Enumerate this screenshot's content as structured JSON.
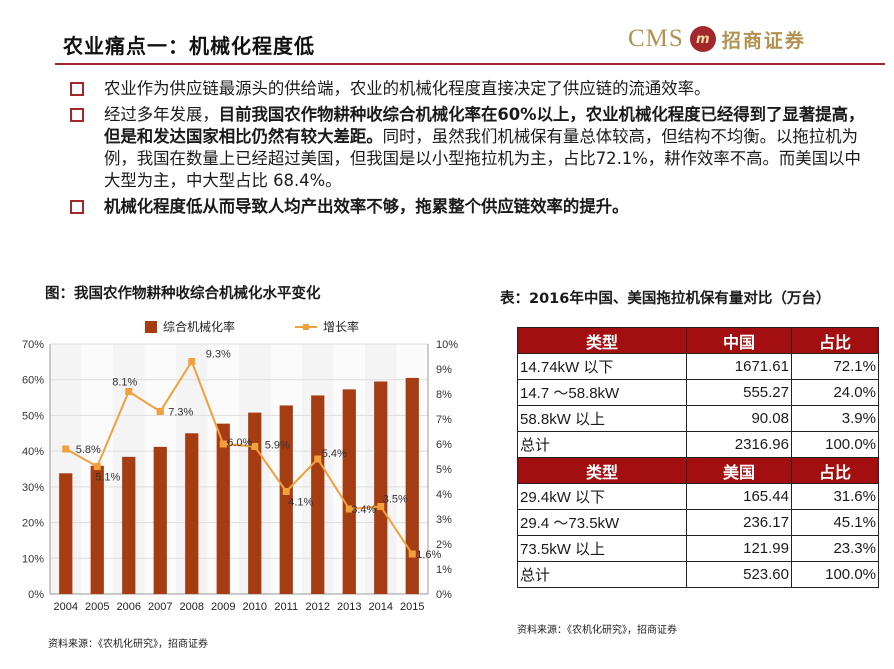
{
  "header": {
    "title": "农业痛点一：机械化程度低",
    "brand_cms": "CMS",
    "brand_logo_glyph": "m",
    "brand_name": "招商证券"
  },
  "bullets": [
    {
      "parts": [
        "农业作为供应链最源头的供给端，农业的机械化程度直接决定了供应链的流通效率。"
      ]
    },
    {
      "parts": [
        "经过多年发展，",
        "目前我国农作物耕种收综合机械化率在60%以上，农业机械化程度已经得到了显著提高，但是和发达国家相比仍然有较大差距。",
        "同时，虽然我们机械保有量总体较高，但结构不均衡。以拖拉机为例，我国在数量上已经超过美国，但我国是以小型拖拉机为主，占比72.1%，耕作效率不高。而美国以中大型为主，中大型占比 68.4%。"
      ]
    },
    {
      "parts": [
        "机械化程度低从而导致人均产出效率不够，拖累整个供应链效率的提升。"
      ]
    }
  ],
  "figure": {
    "title": "图：我国农作物耕种收综合机械化水平变化",
    "source": "资料来源：《农机化研究》，招商证券"
  },
  "table_section": {
    "title": "表：2016年中国、美国拖拉机保有量对比（万台）",
    "source": "资料来源：《农机化研究》，招商证券",
    "china_header": [
      "类型",
      "中国",
      "占比"
    ],
    "china_rows": [
      [
        "14.74kW 以下",
        "1671.61",
        "72.1%"
      ],
      [
        "14.7 ～58.8kW",
        "555.27",
        "24.0%"
      ],
      [
        "58.8kW 以上",
        "90.08",
        "3.9%"
      ],
      [
        "总计",
        "2316.96",
        "100.0%"
      ]
    ],
    "us_header": [
      "类型",
      "美国",
      "占比"
    ],
    "us_rows": [
      [
        "29.4kW 以下",
        "165.44",
        "31.6%"
      ],
      [
        "29.4 ～73.5kW",
        "236.17",
        "45.1%"
      ],
      [
        "73.5kW 以上",
        "121.99",
        "23.3%"
      ],
      [
        "总计",
        "523.60",
        "100.0%"
      ]
    ]
  },
  "chart_data": {
    "type": "bar",
    "categories": [
      "2004",
      "2005",
      "2006",
      "2007",
      "2008",
      "2009",
      "2010",
      "2011",
      "2012",
      "2013",
      "2014",
      "2015"
    ],
    "series": [
      {
        "name": "综合机械化率",
        "kind": "bar",
        "axis": "left",
        "values": [
          33.8,
          35.9,
          38.4,
          41.2,
          45.0,
          47.7,
          50.8,
          52.8,
          55.6,
          57.3,
          59.5,
          60.5
        ]
      },
      {
        "name": "增长率",
        "kind": "line",
        "axis": "right",
        "values": [
          5.8,
          5.1,
          8.1,
          7.3,
          9.3,
          6.0,
          5.9,
          4.1,
          5.4,
          3.4,
          3.5,
          1.6
        ],
        "labels": [
          "5.8%",
          "5.1%",
          "8.1%",
          "7.3%",
          "9.3%",
          "6.0%",
          "5.9%",
          "4.1%",
          "5.4%",
          "3.4%",
          "3.5%",
          "1.6%"
        ]
      }
    ],
    "y_left": {
      "ylim": [
        0,
        70
      ],
      "ticks": [
        "0%",
        "10%",
        "20%",
        "30%",
        "40%",
        "50%",
        "60%",
        "70%"
      ]
    },
    "y_right": {
      "ylim": [
        0,
        10
      ],
      "ticks": [
        "0%",
        "1%",
        "2%",
        "3%",
        "4%",
        "5%",
        "6%",
        "7%",
        "8%",
        "9%",
        "10%"
      ]
    },
    "legend": "top",
    "grid": true,
    "colors": {
      "bar": "#a63d12",
      "line": "#f0a03c"
    }
  }
}
